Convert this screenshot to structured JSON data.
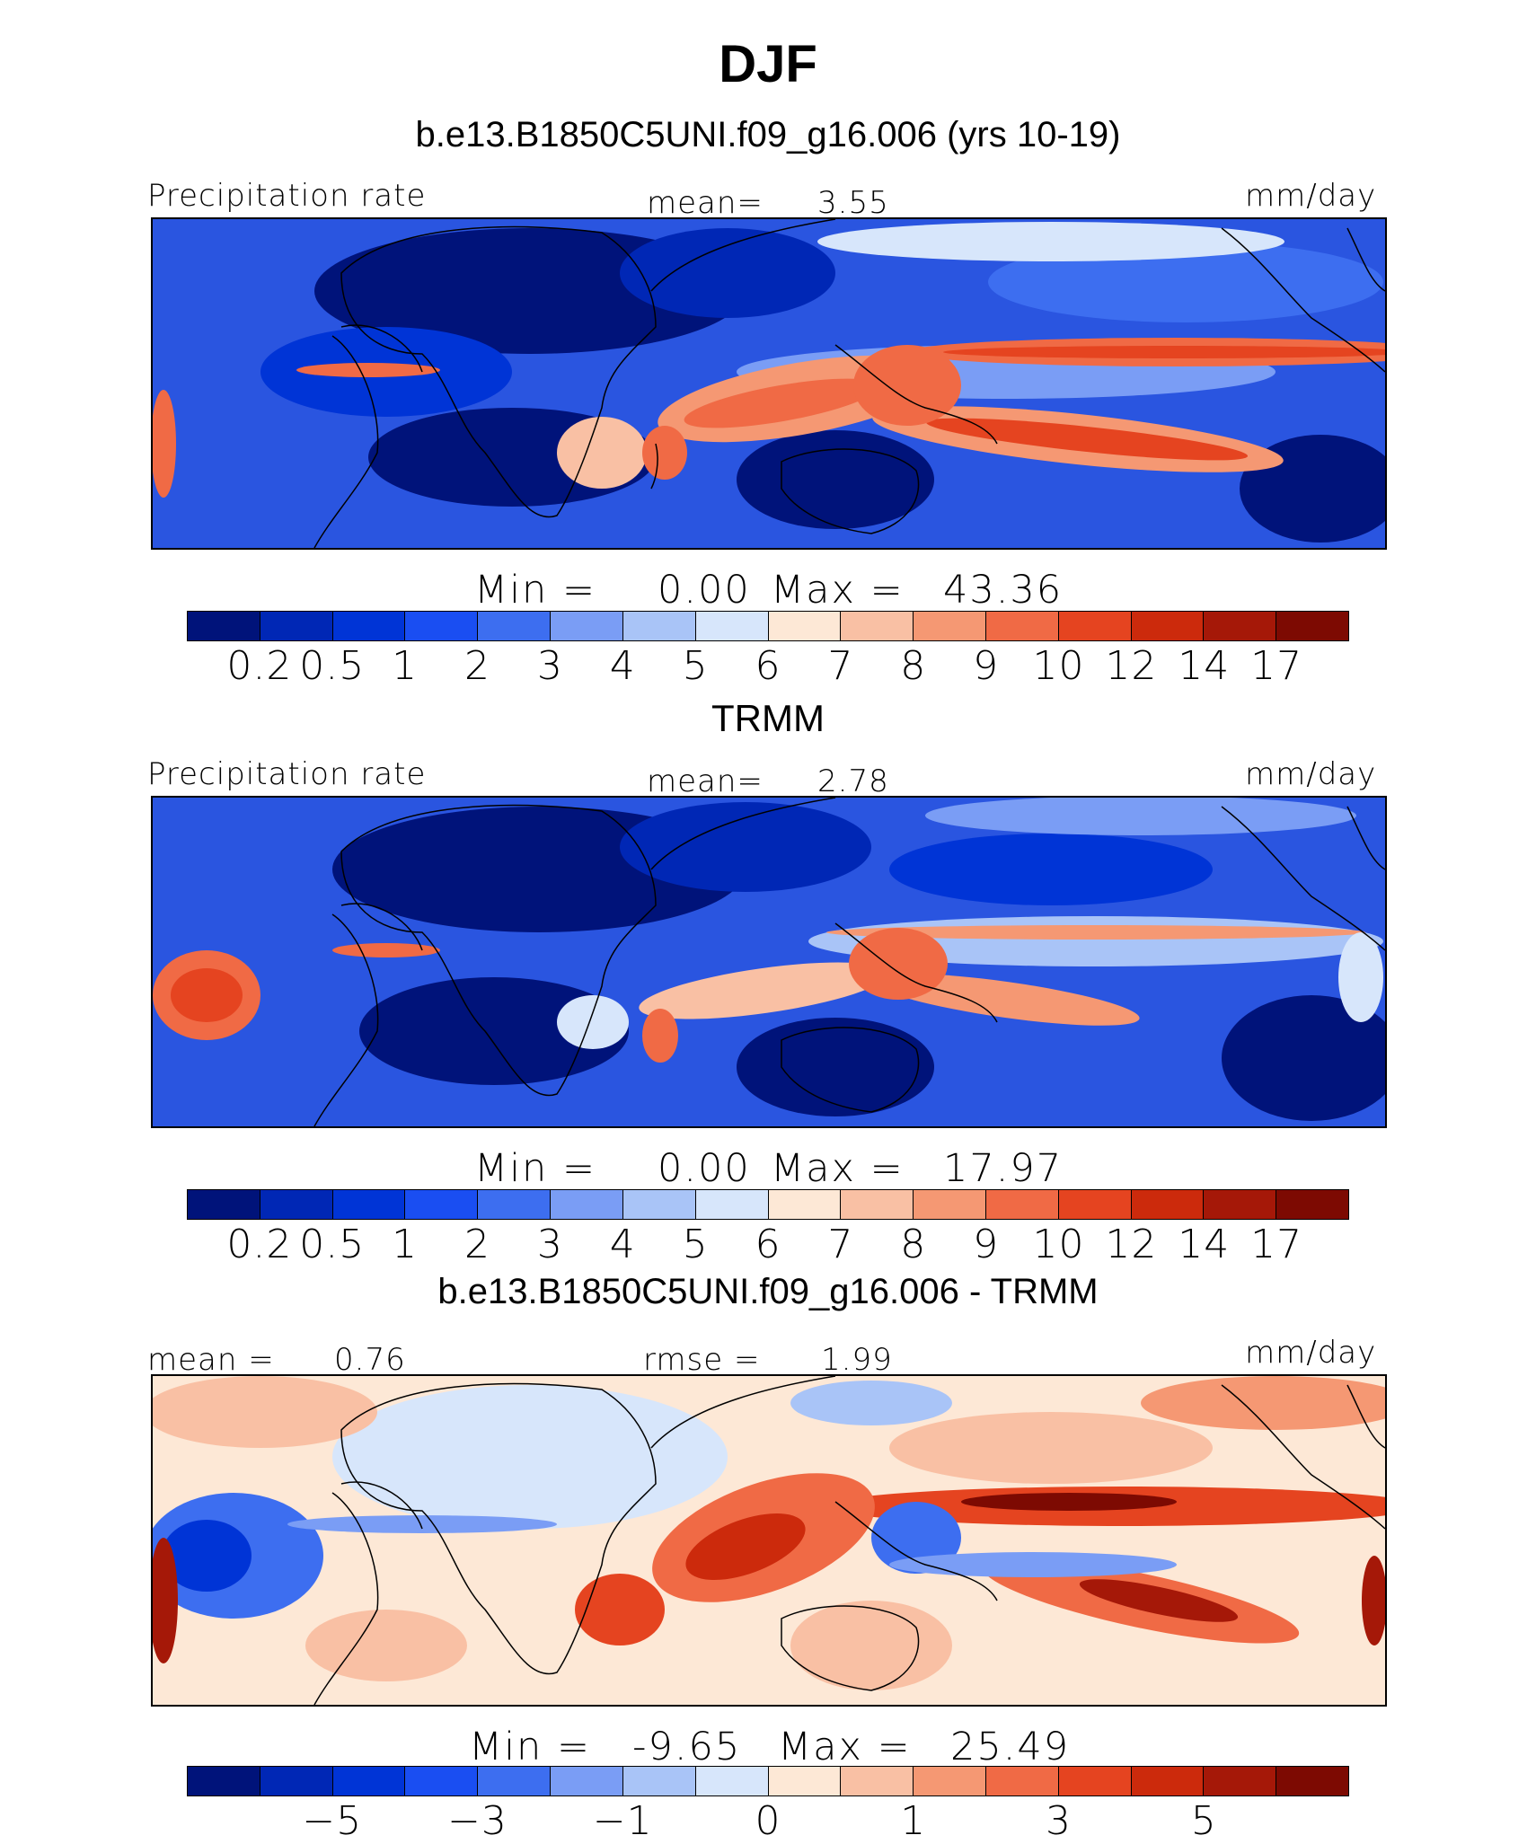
{
  "title": "DJF",
  "panels": [
    {
      "heading": "b.e13.B1850C5UNI.f09_g16.006 (yrs 10-19)",
      "left_label": "Precipitation  rate",
      "mean_label": "mean=",
      "mean_value": "3.55",
      "units": "mm/day",
      "min_label": "Min  =",
      "min_value": "0.00",
      "max_label": "Max  =",
      "max_value": "43.36",
      "ticks": [
        "0.2",
        "0.5",
        "1",
        "2",
        "3",
        "4",
        "5",
        "6",
        "7",
        "8",
        "9",
        "10",
        "12",
        "14",
        "17"
      ]
    },
    {
      "heading": "TRMM",
      "left_label": "Precipitation  rate",
      "mean_label": "mean=",
      "mean_value": "2.78",
      "units": "mm/day",
      "min_label": "Min  =",
      "min_value": "0.00",
      "max_label": "Max  =",
      "max_value": "17.97",
      "ticks": [
        "0.2",
        "0.5",
        "1",
        "2",
        "3",
        "4",
        "5",
        "6",
        "7",
        "8",
        "9",
        "10",
        "12",
        "14",
        "17"
      ]
    },
    {
      "heading": "b.e13.B1850C5UNI.f09_g16.006 - TRMM",
      "mean_label": "mean  =",
      "mean_value": "0.76",
      "rmse_label": "rmse  =",
      "rmse_value": "1.99",
      "units": "mm/day",
      "min_label": "Min  =",
      "min_value": "-9.65",
      "max_label": "Max  =",
      "max_value": "25.49",
      "ticks": [
        "−5",
        "−3",
        "−1",
        "0",
        "1",
        "3",
        "5"
      ]
    }
  ],
  "colormap": {
    "precip": [
      "#00137a",
      "#0027b5",
      "#0034d6",
      "#1a4ef2",
      "#3d6ef0",
      "#7a9df5",
      "#a9c4f7",
      "#d7e6fb",
      "#fde8d6",
      "#f9c0a4",
      "#f59873",
      "#f06a45",
      "#e54420",
      "#cc2a0c",
      "#a51808",
      "#7d0a02"
    ],
    "diff": [
      "#00137a",
      "#0027b5",
      "#0034d6",
      "#1a4ef2",
      "#3d6ef0",
      "#7a9df5",
      "#a9c4f7",
      "#d7e6fb",
      "#fde8d6",
      "#f9c0a4",
      "#f59873",
      "#f06a45",
      "#e54420",
      "#cc2a0c",
      "#a51808",
      "#7d0a02"
    ]
  }
}
